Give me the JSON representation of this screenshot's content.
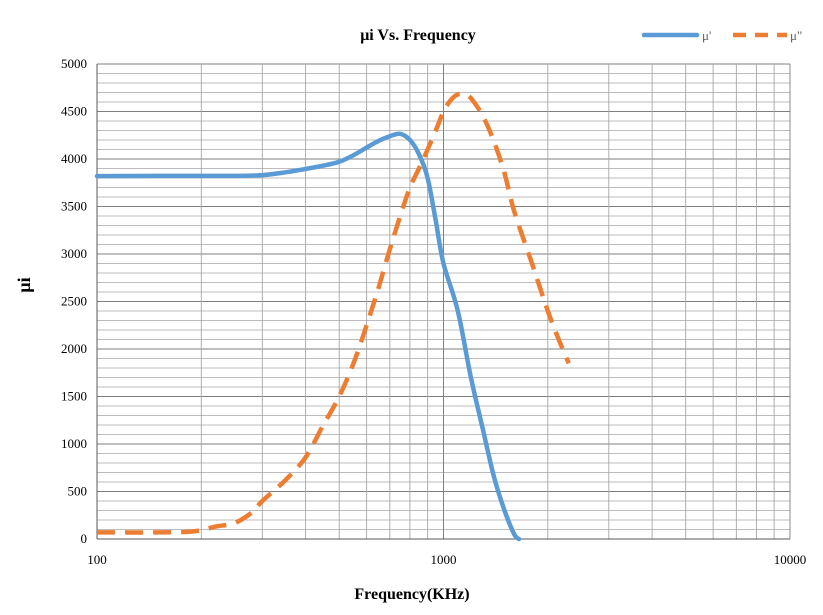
{
  "chart_data": {
    "type": "line",
    "title": "μi Vs. Frequency",
    "xlabel": "Frequency(KHz)",
    "ylabel": "μi",
    "x_scale": "log",
    "xlim": [
      100,
      10000
    ],
    "ylim": [
      0,
      5000
    ],
    "y_ticks": [
      0,
      500,
      1000,
      1500,
      2000,
      2500,
      3000,
      3500,
      4000,
      4500,
      5000
    ],
    "x_tick_labels": [
      "100",
      "1000",
      "10000"
    ],
    "grid": true,
    "legend_position": "top-right",
    "series": [
      {
        "name": "μ'",
        "color": "#5B9BD5",
        "style": "solid",
        "points": [
          [
            100,
            3820
          ],
          [
            150,
            3822
          ],
          [
            200,
            3822
          ],
          [
            250,
            3822
          ],
          [
            300,
            3830
          ],
          [
            350,
            3860
          ],
          [
            400,
            3895
          ],
          [
            450,
            3930
          ],
          [
            500,
            3970
          ],
          [
            550,
            4040
          ],
          [
            600,
            4120
          ],
          [
            650,
            4190
          ],
          [
            700,
            4240
          ],
          [
            750,
            4265
          ],
          [
            800,
            4200
          ],
          [
            850,
            4050
          ],
          [
            900,
            3800
          ],
          [
            950,
            3350
          ],
          [
            1000,
            2900
          ],
          [
            1100,
            2400
          ],
          [
            1200,
            1700
          ],
          [
            1300,
            1150
          ],
          [
            1400,
            650
          ],
          [
            1500,
            300
          ],
          [
            1600,
            50
          ],
          [
            1650,
            0
          ]
        ]
      },
      {
        "name": "μ\"",
        "color": "#ED7D31",
        "style": "dashed",
        "points": [
          [
            100,
            70
          ],
          [
            150,
            70
          ],
          [
            190,
            80
          ],
          [
            220,
            130
          ],
          [
            250,
            170
          ],
          [
            280,
            280
          ],
          [
            300,
            400
          ],
          [
            350,
            620
          ],
          [
            400,
            860
          ],
          [
            450,
            1200
          ],
          [
            500,
            1500
          ],
          [
            550,
            1850
          ],
          [
            600,
            2250
          ],
          [
            650,
            2650
          ],
          [
            700,
            3050
          ],
          [
            750,
            3400
          ],
          [
            800,
            3700
          ],
          [
            850,
            3900
          ],
          [
            900,
            4100
          ],
          [
            950,
            4300
          ],
          [
            1000,
            4500
          ],
          [
            1050,
            4620
          ],
          [
            1100,
            4680
          ],
          [
            1150,
            4680
          ],
          [
            1200,
            4640
          ],
          [
            1300,
            4450
          ],
          [
            1400,
            4180
          ],
          [
            1500,
            3850
          ],
          [
            1600,
            3450
          ],
          [
            1800,
            2900
          ],
          [
            2000,
            2400
          ],
          [
            2150,
            2100
          ],
          [
            2300,
            1850
          ]
        ]
      }
    ]
  }
}
